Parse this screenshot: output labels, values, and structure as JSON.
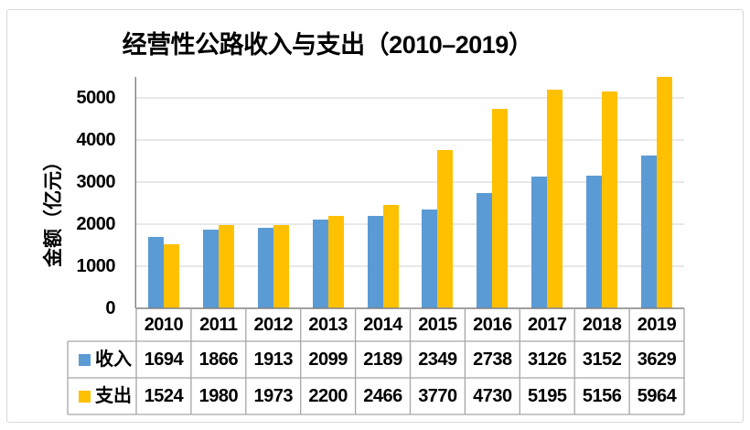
{
  "colors": {
    "income": "#5B9BD5",
    "expense": "#FFC000",
    "gridline": "#D9D9D9",
    "axis": "#808080",
    "table_border": "#A6A6A6",
    "frame_border": "#D9D9D9",
    "text": "#000000"
  },
  "chart_data": {
    "type": "bar",
    "title": "经营性公路收入与支出（2010–2019）",
    "ylabel": "金额（亿元）",
    "xlabel": "",
    "categories": [
      "2010",
      "2011",
      "2012",
      "2013",
      "2014",
      "2015",
      "2016",
      "2017",
      "2018",
      "2019"
    ],
    "series": [
      {
        "name": "收入",
        "color": "#5B9BD5",
        "values": [
          1694,
          1866,
          1913,
          2099,
          2189,
          2349,
          2738,
          3126,
          3152,
          3629
        ]
      },
      {
        "name": "支出",
        "color": "#FFC000",
        "values": [
          1524,
          1980,
          1973,
          2200,
          2466,
          3770,
          4730,
          5195,
          5156,
          5964
        ]
      }
    ],
    "yticks": [
      0,
      1000,
      2000,
      3000,
      4000,
      5000
    ],
    "ylim": [
      0,
      5500
    ],
    "grid": true,
    "legend_position": "data-table-left",
    "data_table": true
  }
}
